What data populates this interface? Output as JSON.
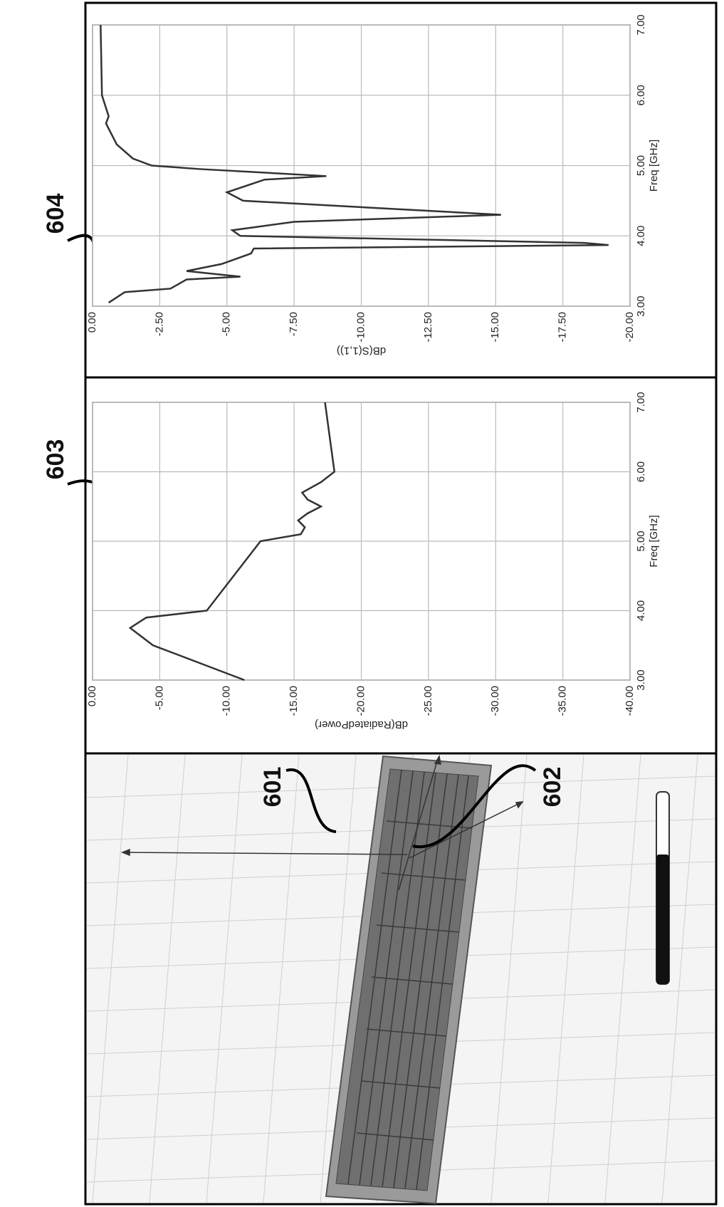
{
  "chart_data": [
    {
      "type": "line",
      "x": [
        3.05,
        3.2,
        3.25,
        3.38,
        3.42,
        3.5,
        3.6,
        3.75,
        3.82,
        3.87,
        3.9,
        3.95,
        4.0,
        4.08,
        4.2,
        4.3,
        4.5,
        4.62,
        4.8,
        4.85,
        4.95,
        5.0,
        5.1,
        5.3,
        5.6,
        5.7,
        6.0,
        7.0
      ],
      "values": [
        -0.6,
        -1.2,
        -2.9,
        -3.5,
        -5.5,
        -3.5,
        -4.8,
        -5.9,
        -6.0,
        -19.2,
        -18.3,
        -12.0,
        -5.5,
        -5.2,
        -7.5,
        -15.2,
        -5.6,
        -5.0,
        -6.4,
        -8.7,
        -4.0,
        -2.2,
        -1.5,
        -0.9,
        -0.5,
        -0.6,
        -0.35,
        -0.3
      ],
      "color": "#333333",
      "x_label": "Freq [GHz]",
      "y_label": "dB(S(1,1))",
      "xlim": [
        3,
        7
      ],
      "ylim": [
        -20,
        0
      ],
      "xticks": [
        {
          "value": 3,
          "label": "3.00"
        },
        {
          "value": 4,
          "label": "4.00"
        },
        {
          "value": 5,
          "label": "5.00"
        },
        {
          "value": 6,
          "label": "6.00"
        },
        {
          "value": 7,
          "label": "7.00"
        }
      ],
      "yticks": [
        {
          "value": 0,
          "label": "0.00"
        },
        {
          "value": -2.5,
          "label": "-2.50"
        },
        {
          "value": -5,
          "label": "-5.00"
        },
        {
          "value": -7.5,
          "label": "-7.50"
        },
        {
          "value": -10,
          "label": "-10.00"
        },
        {
          "value": -12.5,
          "label": "-12.50"
        },
        {
          "value": -15,
          "label": "-15.00"
        },
        {
          "value": -17.5,
          "label": "-17.50"
        },
        {
          "value": -20,
          "label": "-20.00"
        }
      ],
      "grid": true
    },
    {
      "type": "line",
      "x": [
        3.0,
        3.5,
        3.75,
        3.9,
        4.0,
        4.5,
        5.0,
        5.1,
        5.2,
        5.3,
        5.4,
        5.5,
        5.6,
        5.7,
        5.85,
        6.0,
        7.0
      ],
      "values": [
        -11.3,
        -4.5,
        -2.8,
        -4.0,
        -8.5,
        -10.5,
        -12.5,
        -15.5,
        -15.8,
        -15.3,
        -16.0,
        -17.0,
        -16.0,
        -15.6,
        -17.0,
        -18.0,
        -17.3
      ],
      "color": "#333333",
      "x_label": "Freq [GHz]",
      "y_label": "dB(RadiatedPower)",
      "xlim": [
        3,
        7
      ],
      "ylim": [
        -40,
        0
      ],
      "xticks": [
        {
          "value": 3,
          "label": "3.00"
        },
        {
          "value": 4,
          "label": "4.00"
        },
        {
          "value": 5,
          "label": "5.00"
        },
        {
          "value": 6,
          "label": "6.00"
        },
        {
          "value": 7,
          "label": "7.00"
        }
      ],
      "yticks": [
        {
          "value": 0,
          "label": "0.00"
        },
        {
          "value": -5,
          "label": "-5.00"
        },
        {
          "value": -10,
          "label": "-10.00"
        },
        {
          "value": -15,
          "label": "-15.00"
        },
        {
          "value": -20,
          "label": "-20.00"
        },
        {
          "value": -25,
          "label": "-25.00"
        },
        {
          "value": -30,
          "label": "-30.00"
        },
        {
          "value": -35,
          "label": "-35.00"
        },
        {
          "value": -40,
          "label": "-40.00"
        }
      ],
      "grid": true
    }
  ],
  "reference_numerals": {
    "s11_plot": "604",
    "radiated_power_plot": "603",
    "patch": "601",
    "feed": "602"
  }
}
